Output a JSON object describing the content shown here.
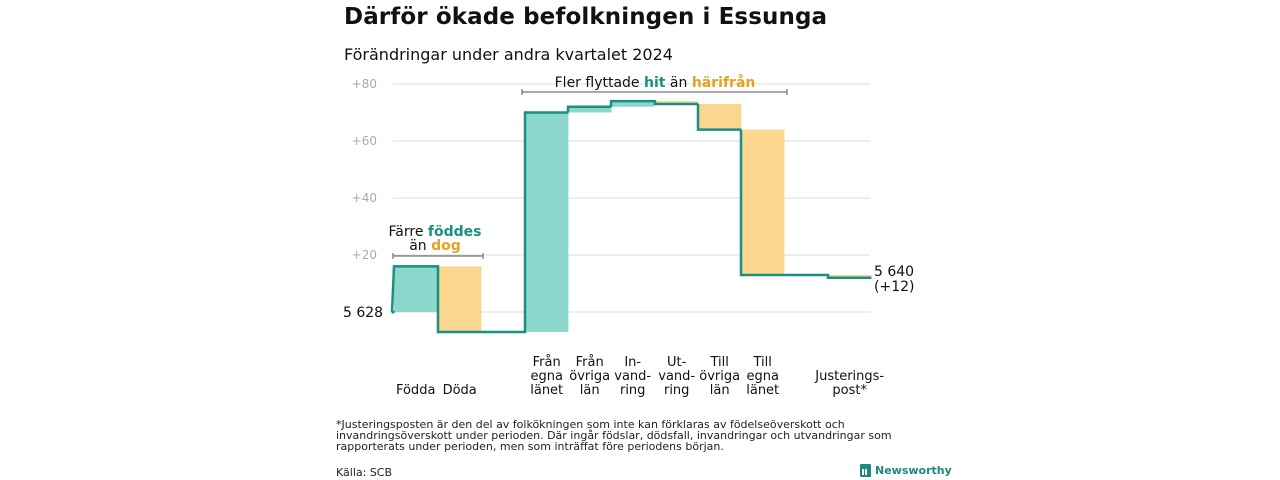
{
  "title": "Därför ökade befolkningen i Essunga",
  "subtitle": "Förändringar under andra kvartalet 2024",
  "colors": {
    "increase": "#8dd6cb",
    "decrease": "#fbd68f",
    "line": "#1a9180",
    "hit": "#1a9180",
    "harifran": "#e8a020",
    "grid": "#dddddd",
    "tick": "#aaaaaa"
  },
  "chart_data": {
    "type": "waterfall",
    "start_label": "5 628",
    "end_label_value": "5 640",
    "end_label_change": "(+12)",
    "yticks": [
      "+80",
      "+60",
      "+40",
      "+20"
    ],
    "ylim": [
      -7,
      80
    ],
    "start": 0,
    "steps": [
      {
        "label": "Födda",
        "value": 16,
        "type": "increase"
      },
      {
        "label": "Döda",
        "value": -23,
        "type": "decrease"
      },
      {
        "label": "Från egna länet",
        "value": 77,
        "type": "increase"
      },
      {
        "label": "Från övriga län",
        "value": 2,
        "type": "increase"
      },
      {
        "label": "In-vand-ring",
        "value": 2,
        "type": "increase"
      },
      {
        "label": "Ut-vand-ring",
        "value": -1,
        "type": "decrease"
      },
      {
        "label": "Till övriga län",
        "value": -9,
        "type": "decrease"
      },
      {
        "label": "Till egna länet",
        "value": -51,
        "type": "decrease"
      },
      {
        "label": "Justerings-post*",
        "value": -1,
        "type": "decrease"
      }
    ],
    "category_lines": [
      [
        "Födda"
      ],
      [
        "Döda"
      ],
      [
        "Från",
        "egna",
        "länet"
      ],
      [
        "Från",
        "övriga",
        "län"
      ],
      [
        "In-",
        "vand-",
        "ring"
      ],
      [
        "Ut-",
        "vand-",
        "ring"
      ],
      [
        "Till",
        "övriga",
        "län"
      ],
      [
        "Till",
        "egna",
        "länet"
      ],
      [
        "Justerings-",
        "post*"
      ]
    ],
    "annotations": {
      "left_line1": "Färre",
      "left_word1": "föddes",
      "left_line2": "än",
      "left_word2": "dog",
      "right_prefix": "Fler flyttade",
      "right_word1": "hit",
      "right_mid": "än",
      "right_word2": "härifrån"
    }
  },
  "footnote": "*Justeringsposten är den del av folkökningen som inte kan förklaras av födelseöverskott och invandringsöverskott under perioden. Där ingår födslar, dödsfall, invandringar och utvandringar som rapporterats under perioden, men som inträffat före periodens början.",
  "source": "Källa: SCB",
  "brand": "Newsworthy"
}
